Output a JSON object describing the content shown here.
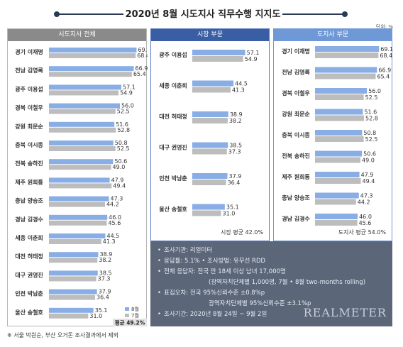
{
  "title": "2020년 8월 시도지사 직무수행 지지도",
  "unit": "단위: %",
  "chart_data": [
    {
      "type": "bar",
      "panel": "시도지사 전체",
      "categories": [
        "경기 이재명",
        "전남 김영록",
        "광주 이용섭",
        "경북 이철우",
        "강원 최문순",
        "충북 이시종",
        "전북 송하진",
        "제주 원희룡",
        "충남 양승조",
        "경남 김경수",
        "세종 이춘희",
        "대전 허태정",
        "대구 권영진",
        "인천 박남춘",
        "울산 송철호"
      ],
      "series": [
        {
          "name": "8월",
          "values": [
            69.1,
            66.9,
            57.1,
            56.0,
            51.6,
            50.8,
            50.6,
            47.9,
            47.3,
            46.0,
            44.5,
            38.9,
            38.5,
            37.9,
            35.1
          ]
        },
        {
          "name": "7월",
          "values": [
            68.4,
            65.4,
            54.9,
            52.5,
            52.8,
            52.5,
            49.0,
            49.4,
            44.2,
            45.6,
            41.3,
            38.2,
            37.3,
            36.4,
            31.0
          ]
        }
      ],
      "average": "평균 49.2%",
      "ylim": [
        0,
        75
      ]
    },
    {
      "type": "bar",
      "panel": "시장 부문",
      "categories": [
        "광주 이용섭",
        "세종 이춘희",
        "대전 허태정",
        "대구 권영진",
        "인천 박남춘",
        "울산 송철호"
      ],
      "series": [
        {
          "name": "8월",
          "values": [
            57.1,
            44.5,
            38.9,
            38.5,
            37.9,
            35.1
          ]
        },
        {
          "name": "7월",
          "values": [
            54.9,
            41.3,
            38.2,
            37.3,
            36.4,
            31.0
          ]
        }
      ],
      "average": "시장 평균 42.0%",
      "ylim": [
        0,
        75
      ]
    },
    {
      "type": "bar",
      "panel": "도지사 부문",
      "categories": [
        "경기 이재명",
        "전남 김영록",
        "경북 이철우",
        "강원 최문순",
        "충북 이시종",
        "전북 송하진",
        "제주 원희룡",
        "충남 양승조",
        "경남 김경수"
      ],
      "series": [
        {
          "name": "8월",
          "values": [
            69.1,
            66.9,
            56.0,
            51.6,
            50.8,
            50.6,
            47.9,
            47.3,
            46.0
          ]
        },
        {
          "name": "7월",
          "values": [
            68.4,
            65.4,
            52.5,
            52.8,
            52.5,
            49.0,
            49.4,
            44.2,
            45.6
          ]
        }
      ],
      "average": "도지사 평균 54.0%",
      "ylim": [
        0,
        75
      ]
    }
  ],
  "colors": {
    "aug": "#89aee6",
    "jul": "#bdbdbd",
    "avg_bg": "#e3e3e3"
  },
  "notes": [
    {
      "text": "조사기관: 리얼미터"
    },
    {
      "text": "응답률: 5.1%  • 조사방법: 유무선 RDD"
    },
    {
      "text": "전체 응답자: 전국 만 18세 이상 남녀 17,000명"
    },
    {
      "text": "(광역자치단체별 1,000명, 7월 • 8월 two-months rolling)",
      "sub": true
    },
    {
      "text": "표집오차: 전국 95%신뢰수준 ±0.8%p"
    },
    {
      "text": "광역자치단체별 95%신뢰수준 ±3.1%p",
      "sub": true
    },
    {
      "text": "조사기간: 2020년 8월 24일 ~ 9월 2일"
    }
  ],
  "brand": "REALMETER",
  "footnote": "※ 서울 박원순, 부산 오거돈 조사결과에서 제외"
}
